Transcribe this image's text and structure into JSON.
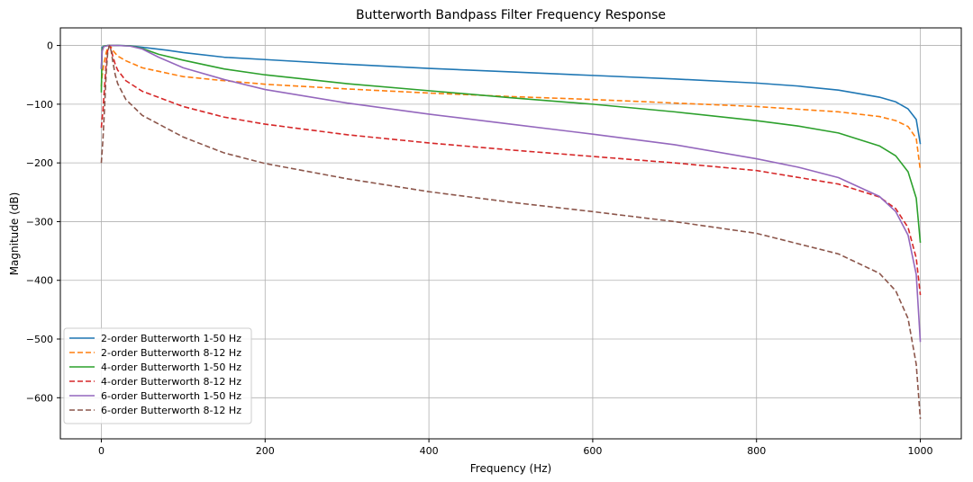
{
  "chart_data": {
    "type": "line",
    "title": "Butterworth Bandpass Filter Frequency Response",
    "xlabel": "Frequency (Hz)",
    "ylabel": "Magnitude (dB)",
    "xlim": [
      -50,
      1050
    ],
    "ylim": [
      -670,
      30
    ],
    "xticks": [
      0,
      200,
      400,
      600,
      800,
      1000
    ],
    "yticks": [
      0,
      -100,
      -200,
      -300,
      -400,
      -500,
      -600
    ],
    "grid": true,
    "legend_position": "lower-left",
    "series": [
      {
        "name": "2-order Butterworth 1-50 Hz",
        "color": "#1f77b4",
        "dash": "solid",
        "x": [
          0,
          1,
          3,
          8,
          20,
          35,
          50,
          80,
          100,
          150,
          200,
          300,
          400,
          500,
          600,
          700,
          800,
          850,
          900,
          950,
          970,
          985,
          995,
          1000
        ],
        "y": [
          -40,
          -3,
          -1,
          -0.2,
          0,
          -0.5,
          -3,
          -8,
          -12,
          -20,
          -24,
          -32,
          -39,
          -45,
          -51,
          -57,
          -64,
          -69,
          -76,
          -88,
          -96,
          -108,
          -126,
          -168
        ]
      },
      {
        "name": "2-order Butterworth 8-12 Hz",
        "color": "#ff7f0e",
        "dash": "dashed",
        "x": [
          0,
          1,
          3,
          6,
          8,
          10,
          12,
          15,
          20,
          30,
          50,
          100,
          150,
          200,
          300,
          400,
          500,
          600,
          700,
          800,
          900,
          950,
          970,
          985,
          995,
          1000
        ],
        "y": [
          -70,
          -52,
          -32,
          -12,
          -3,
          0,
          -3,
          -10,
          -18,
          -26,
          -38,
          -53,
          -60,
          -66,
          -74,
          -81,
          -87,
          -92,
          -98,
          -104,
          -113,
          -121,
          -128,
          -138,
          -158,
          -213
        ]
      },
      {
        "name": "4-order Butterworth 1-50 Hz",
        "color": "#2ca02c",
        "dash": "solid",
        "x": [
          0,
          1,
          3,
          8,
          20,
          35,
          50,
          70,
          100,
          150,
          200,
          300,
          400,
          500,
          600,
          700,
          800,
          850,
          900,
          950,
          970,
          985,
          995,
          1000
        ],
        "y": [
          -80,
          -6,
          -1,
          0,
          0,
          -0.5,
          -5,
          -15,
          -25,
          -40,
          -50,
          -65,
          -77,
          -89,
          -100,
          -113,
          -128,
          -137,
          -149,
          -171,
          -188,
          -215,
          -260,
          -336
        ]
      },
      {
        "name": "4-order Butterworth 8-12 Hz",
        "color": "#d62728",
        "dash": "dashed",
        "x": [
          0,
          2,
          4,
          6,
          8,
          10,
          12,
          14,
          17,
          20,
          30,
          50,
          100,
          150,
          200,
          300,
          400,
          500,
          600,
          700,
          800,
          900,
          950,
          970,
          985,
          995,
          1000
        ],
        "y": [
          -140,
          -110,
          -70,
          -30,
          -6,
          0,
          -6,
          -18,
          -32,
          -42,
          -60,
          -78,
          -104,
          -122,
          -134,
          -152,
          -166,
          -178,
          -189,
          -200,
          -213,
          -236,
          -258,
          -278,
          -310,
          -362,
          -425
        ]
      },
      {
        "name": "6-order Butterworth 1-50 Hz",
        "color": "#9467bd",
        "dash": "solid",
        "x": [
          0,
          1,
          3,
          8,
          20,
          35,
          50,
          70,
          100,
          150,
          200,
          300,
          400,
          500,
          600,
          700,
          800,
          850,
          900,
          950,
          970,
          985,
          995,
          1000
        ],
        "y": [
          -40,
          -10,
          -2,
          0,
          0,
          -1,
          -6,
          -20,
          -38,
          -58,
          -75,
          -98,
          -117,
          -134,
          -151,
          -169,
          -193,
          -207,
          -225,
          -257,
          -283,
          -323,
          -390,
          -505
        ]
      },
      {
        "name": "6-order Butterworth 8-12 Hz",
        "color": "#8c564b",
        "dash": "dashed",
        "x": [
          0,
          2,
          4,
          6,
          8,
          10,
          12,
          14,
          17,
          20,
          30,
          50,
          100,
          150,
          200,
          300,
          400,
          500,
          600,
          700,
          800,
          900,
          950,
          970,
          985,
          995,
          1000
        ],
        "y": [
          -200,
          -160,
          -105,
          -45,
          -9,
          0,
          -9,
          -27,
          -50,
          -65,
          -92,
          -119,
          -156,
          -183,
          -201,
          -227,
          -249,
          -267,
          -283,
          -300,
          -320,
          -355,
          -388,
          -418,
          -465,
          -543,
          -636
        ]
      }
    ]
  }
}
